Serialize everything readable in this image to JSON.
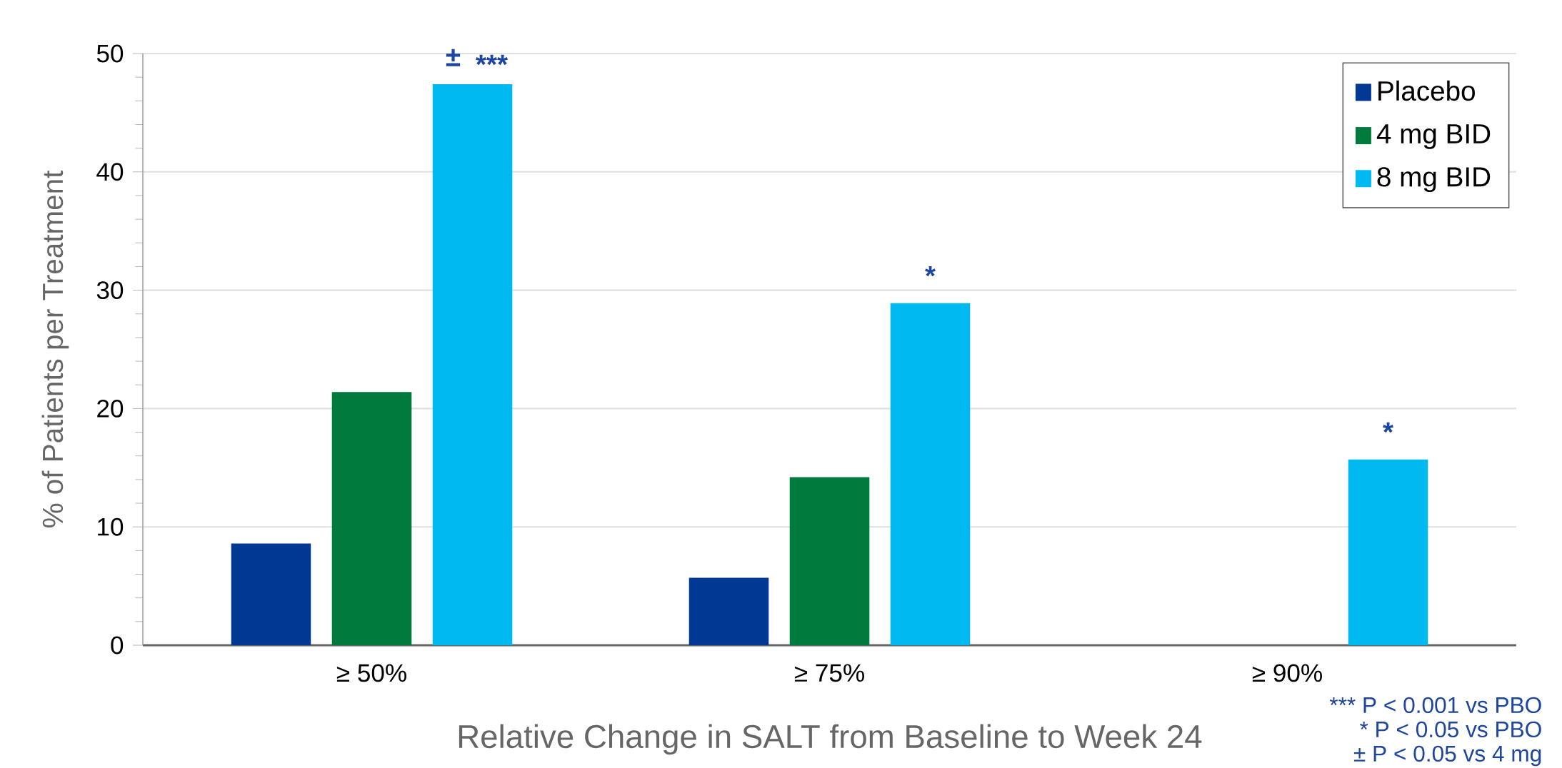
{
  "chart_data": {
    "type": "bar",
    "xlabel": "Relative Change in SALT from Baseline to Week 24",
    "ylabel": "% of Patients per Treatment",
    "categories": [
      "≥ 50%",
      "≥ 75%",
      "≥ 90%"
    ],
    "series": [
      {
        "name": "Placebo",
        "color": "#003893",
        "values": [
          8.6,
          5.7,
          0
        ]
      },
      {
        "name": "4 mg BID",
        "color": "#007a3d",
        "values": [
          21.4,
          14.2,
          0
        ]
      },
      {
        "name": "8 mg BID",
        "color": "#00b9f0",
        "values": [
          47.4,
          28.9,
          15.7
        ]
      }
    ],
    "ylim": [
      0,
      50
    ],
    "yticks": [
      0,
      10,
      20,
      30,
      40,
      50
    ],
    "grid": "y",
    "legend": "top right",
    "annotations": [
      "±",
      "***",
      "*",
      "*",
      "*** P < 0.001 vs PBO",
      "* P < 0.05 vs PBO",
      "± P < 0.05 vs 4 mg"
    ]
  }
}
